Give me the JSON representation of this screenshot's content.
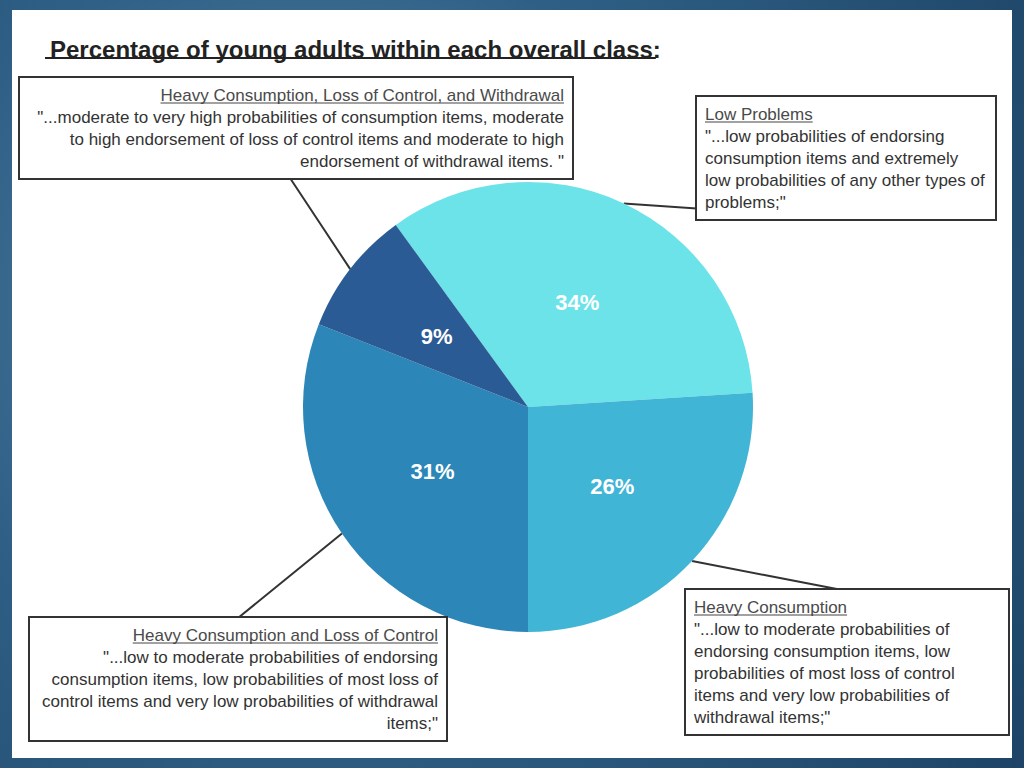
{
  "chart_data": {
    "type": "pie",
    "title": "Percentage of young adults within each overall class:",
    "categories": [
      "Low Problems",
      "Heavy Consumption",
      "Heavy Consumption and Loss of Control",
      "Heavy Consumption, Loss of Control, and Withdrawal"
    ],
    "values": [
      34,
      26,
      31,
      9
    ],
    "value_labels": [
      "34%",
      "26%",
      "31%",
      "9%"
    ],
    "data_labels": true,
    "colors": [
      "#6be3e9",
      "#41b5d5",
      "#2c87b8",
      "#2b5b95"
    ],
    "annotations": [
      "\"...low probabilities of endorsing consumption items and extremely low probabilities of any other types of problems;\"",
      "\"...low to moderate probabilities of endorsing consumption items, low probabilities of most loss of control items and very low probabilities of withdrawal items;\"",
      "\"...low to moderate probabilities of endorsing consumption items, low probabilities of most loss of control items and very low probabilities of withdrawal items;\"",
      "\"...moderate to very high probabilities of consumption items, moderate to high endorsement of loss of control items and moderate to high endorsement of withdrawal items. \""
    ]
  }
}
